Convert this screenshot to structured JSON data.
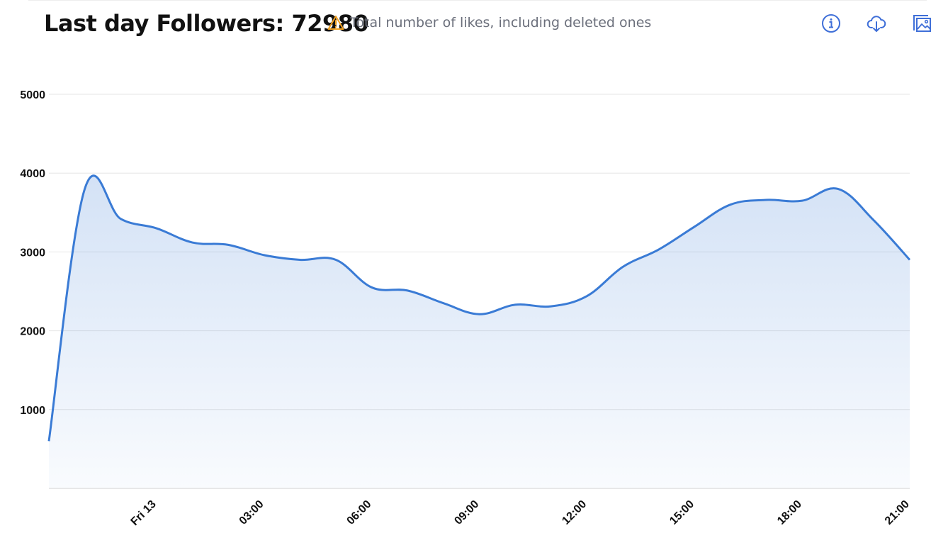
{
  "header": {
    "title": "Last day Followers: 72980",
    "note": "Total number of likes, including deleted ones",
    "icons": [
      "info-icon",
      "cloud-download-icon",
      "image-export-icon"
    ]
  },
  "colors": {
    "line": "#3a7bd5",
    "accent": "#3f6fd8",
    "warning": "#f0a020"
  },
  "chart_data": {
    "type": "area",
    "title": "Last day Followers: 72980",
    "xlabel": "",
    "ylabel": "",
    "ylim": [
      0,
      5000
    ],
    "yticks": [
      1000,
      2000,
      3000,
      4000,
      5000
    ],
    "ytick_labels": [
      "1000",
      "2000",
      "3000",
      "4000",
      "5000"
    ],
    "xticks_hours": [
      3,
      6,
      9,
      12,
      15,
      18,
      21,
      24
    ],
    "xtick_labels": [
      "Fri 13",
      "03:00",
      "06:00",
      "09:00",
      "12:00",
      "15:00",
      "18:00",
      "21:00"
    ],
    "x_hours": [
      0,
      1,
      2,
      3,
      4,
      5,
      6,
      7,
      8,
      9,
      10,
      11,
      12,
      13,
      14,
      15,
      16,
      17,
      18,
      19,
      20,
      21,
      22,
      23,
      24
    ],
    "x_note": "hours since Thu 21:00",
    "values": [
      600,
      3800,
      3420,
      3300,
      3120,
      3090,
      2960,
      2900,
      2900,
      2550,
      2510,
      2350,
      2210,
      2330,
      2310,
      2440,
      2810,
      3030,
      3320,
      3600,
      3660,
      3650,
      3800,
      3400,
      2900
    ],
    "grid": true,
    "legend": "none"
  }
}
